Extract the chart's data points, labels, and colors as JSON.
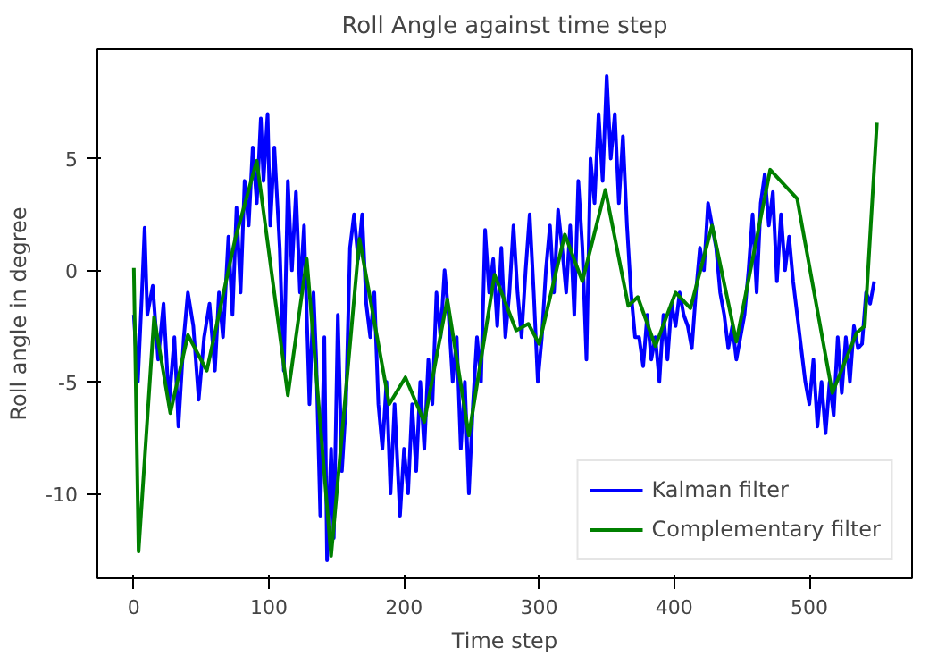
{
  "chart_data": {
    "type": "line",
    "title": "Roll Angle against time step",
    "xlabel": "Time step",
    "ylabel": "Roll angle in degree",
    "xlim": [
      -27,
      576
    ],
    "ylim": [
      -13.8,
      9.9
    ],
    "xticks": [
      0,
      100,
      200,
      300,
      400,
      500
    ],
    "yticks": [
      -10,
      -5,
      0,
      5
    ],
    "legend": "bottom right",
    "grid": false,
    "line_style": "solid",
    "marker": "none",
    "series": [
      {
        "name": "Kalman filter",
        "color": "#0000ff",
        "x": [
          0,
          3,
          6,
          8,
          10,
          14,
          18,
          22,
          26,
          30,
          33,
          37,
          40,
          44,
          48,
          52,
          56,
          60,
          63,
          66,
          70,
          73,
          76,
          79,
          82,
          85,
          88,
          91,
          94,
          96,
          99,
          101,
          104,
          108,
          111,
          114,
          117,
          120,
          123,
          126,
          130,
          133,
          135,
          138,
          141,
          143,
          146,
          148,
          151,
          154,
          157,
          160,
          163,
          166,
          169,
          172,
          175,
          178,
          181,
          184,
          187,
          190,
          193,
          197,
          200,
          203,
          206,
          209,
          212,
          215,
          218,
          221,
          224,
          227,
          230,
          233,
          236,
          239,
          242,
          245,
          248,
          251,
          254,
          257,
          260,
          263,
          266,
          269,
          272,
          275,
          278,
          281,
          284,
          287,
          290,
          293,
          296,
          299,
          302,
          305,
          308,
          311,
          314,
          317,
          320,
          323,
          326,
          329,
          332,
          335,
          338,
          341,
          344,
          347,
          350,
          353,
          356,
          359,
          362,
          365,
          368,
          371,
          374,
          377,
          380,
          383,
          386,
          389,
          392,
          395,
          398,
          401,
          404,
          407,
          410,
          413,
          416,
          419,
          422,
          425,
          428,
          431,
          434,
          437,
          440,
          443,
          446,
          449,
          452,
          455,
          458,
          461,
          464,
          467,
          470,
          473,
          476,
          479,
          482,
          485,
          488,
          491,
          494,
          497,
          500,
          503,
          506,
          509,
          512,
          515,
          518,
          521,
          524,
          527,
          530,
          533,
          536,
          539,
          542,
          545,
          548
        ],
        "values": [
          -2,
          -5,
          -1,
          1.9,
          -2,
          -0.7,
          -4,
          -1.5,
          -6,
          -3,
          -7,
          -3,
          -1,
          -2.5,
          -5.8,
          -3,
          -1.5,
          -4.5,
          -1,
          -3,
          1.5,
          -2,
          2.8,
          -1,
          4,
          2,
          5.5,
          3,
          6.8,
          4,
          7,
          2,
          5.5,
          1,
          -4.5,
          4,
          0,
          3.5,
          -1,
          2,
          -6,
          -1,
          -4,
          -11,
          -3,
          -13,
          -8,
          -12,
          -2,
          -9,
          -6,
          1,
          2.5,
          0.5,
          2.5,
          -1.5,
          -3,
          -1,
          -6,
          -8,
          -5,
          -10,
          -6,
          -11,
          -8,
          -10,
          -6,
          -9,
          -5,
          -8,
          -4,
          -6,
          -1,
          -3,
          0,
          -2,
          -5,
          -3,
          -8,
          -5,
          -10,
          -6,
          -3,
          -5,
          1.8,
          -1,
          0.5,
          -2.5,
          1,
          -3,
          -1,
          2,
          -1,
          -3,
          0,
          2.5,
          -1,
          -5,
          -3,
          0,
          2,
          -1,
          2.7,
          1,
          -1,
          2,
          -2,
          4,
          1,
          -4,
          5,
          3,
          7,
          4,
          8.7,
          5,
          7,
          3,
          6,
          2,
          -1,
          -3,
          -3,
          -4.3,
          -2,
          -4,
          -3,
          -5,
          -2,
          -4,
          -1.5,
          -2.5,
          -1,
          -2,
          -2.5,
          -3.5,
          -1,
          1,
          0,
          3,
          2,
          1,
          -1,
          -2,
          -3.5,
          -2.5,
          -4,
          -3,
          -2,
          0,
          2.5,
          -1,
          3,
          4.3,
          2,
          3.5,
          -0.5,
          2.5,
          0,
          1.5,
          -0.5,
          -2,
          -3.5,
          -5,
          -6,
          -4,
          -7,
          -5,
          -7.3,
          -5,
          -6.5,
          -3,
          -5.5,
          -3,
          -5,
          -2.5,
          -3.5,
          -3.3,
          -1,
          -1.5,
          -0.5
        ]
      },
      {
        "name": "Complementary filter",
        "color": "#008000",
        "x": [
          0,
          3.5,
          15,
          27,
          40,
          54,
          75,
          91,
          114,
          128,
          146,
          167,
          189,
          201,
          215,
          232,
          248,
          267,
          283,
          292,
          300,
          319,
          332,
          349,
          366,
          373,
          386,
          401,
          412,
          428,
          446,
          471,
          491,
          517,
          535,
          541,
          550
        ],
        "values": [
          0.1,
          -12.6,
          -2.1,
          -6.4,
          -2.9,
          -4.5,
          1.4,
          4.9,
          -5.6,
          0.5,
          -12.8,
          1.4,
          -6,
          -4.8,
          -6.8,
          -1.3,
          -7.4,
          -0.2,
          -2.7,
          -2.4,
          -3.3,
          1.6,
          -0.5,
          3.6,
          -1.6,
          -1.2,
          -3.4,
          -1,
          -1.7,
          2,
          -3.2,
          4.5,
          3.2,
          -5.5,
          -2.8,
          -2.5,
          6.6
        ]
      }
    ]
  }
}
